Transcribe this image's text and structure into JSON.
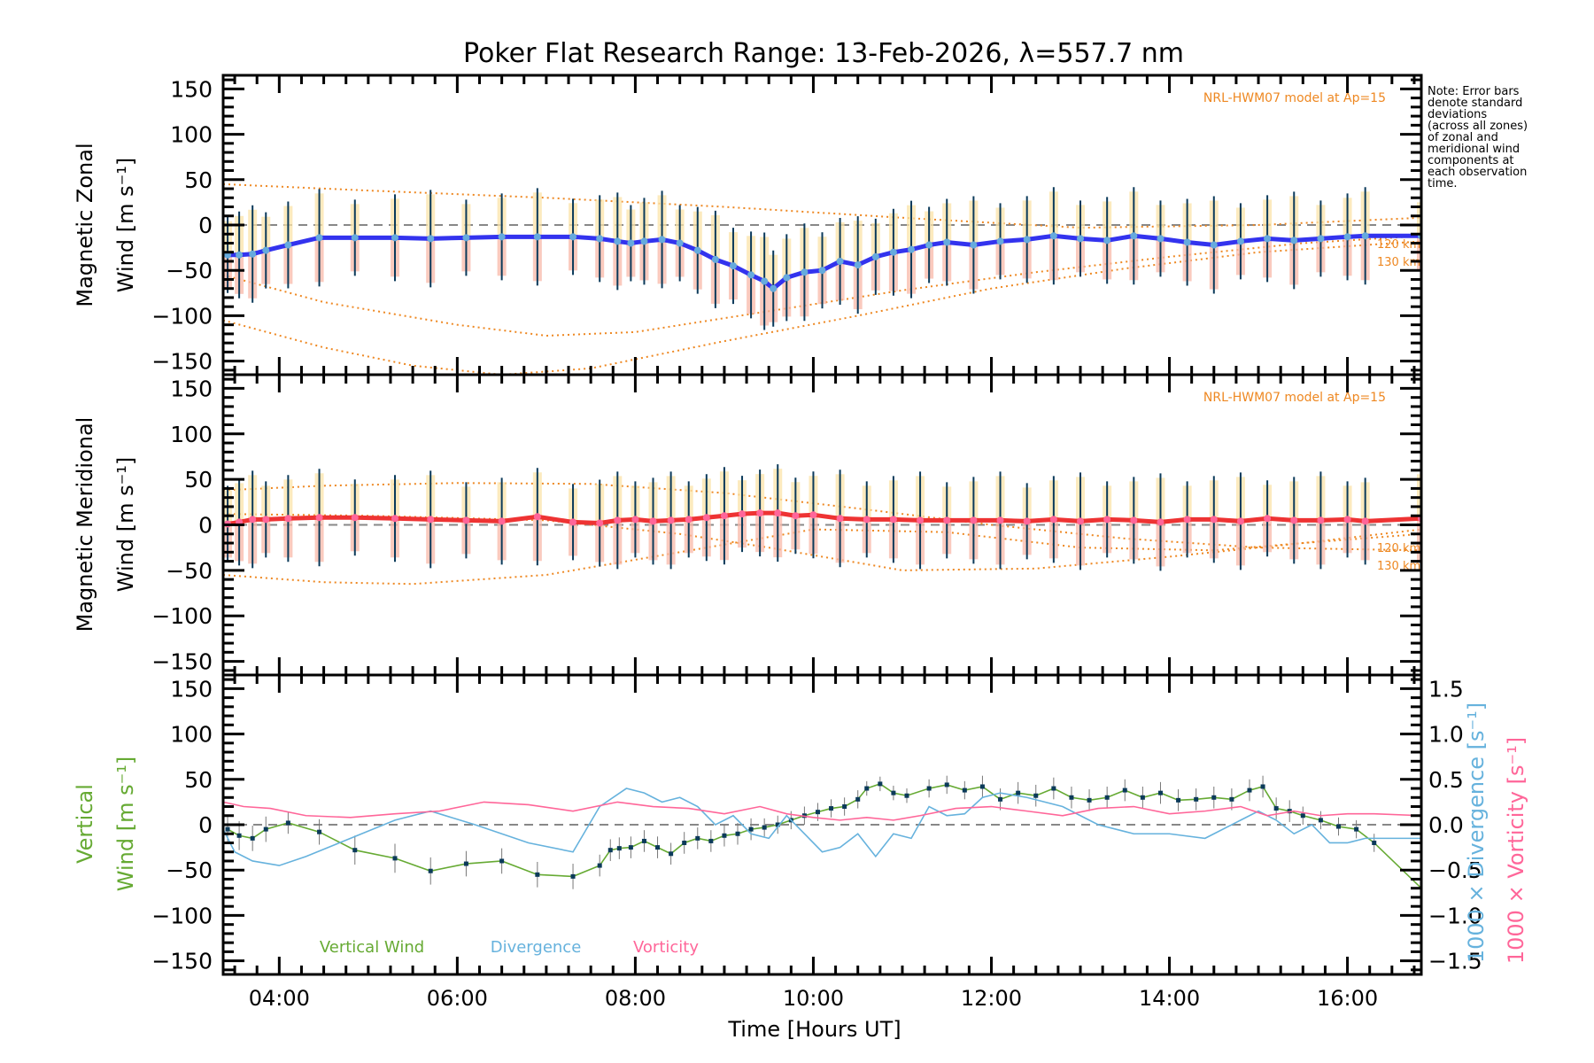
{
  "chart_data": {
    "type": "line",
    "title": "Poker Flat Research Range: 13-Feb-2026, λ=557.7 nm",
    "xlabel": "Time [Hours UT]",
    "xlim_hours": [
      3.37,
      16.83
    ],
    "xticks": [
      {
        "hour": 4,
        "label": "04:00"
      },
      {
        "hour": 6,
        "label": "06:00"
      },
      {
        "hour": 8,
        "label": "08:00"
      },
      {
        "hour": 10,
        "label": "10:00"
      },
      {
        "hour": 12,
        "label": "12:00"
      },
      {
        "hour": 14,
        "label": "14:00"
      },
      {
        "hour": 16,
        "label": "16:00"
      }
    ],
    "note": "Note: Error bars\ndenote standard\ndeviations\n(across all zones)\nof zonal and\nmeridional wind\ncomponents at\neach observation\ntime.",
    "panels": [
      {
        "id": "zonal",
        "ylabel_line1": "Magnetic Zonal",
        "ylabel_line2": "Wind [m s⁻¹]",
        "ylim": [
          -165,
          165
        ],
        "yticks": [
          150,
          100,
          50,
          0,
          -50,
          -100,
          -150
        ],
        "model_label": "NRL-HWM07 model at Ap=15",
        "model_alt_labels": [
          "120 km",
          "130 km"
        ],
        "series": [
          {
            "name": "Zonal wind",
            "color": "#3333ee",
            "marker_color": "#66aadd",
            "x": [
              3.42,
              3.55,
              3.7,
              3.85,
              4.1,
              4.45,
              4.85,
              5.3,
              5.7,
              6.1,
              6.5,
              6.9,
              7.3,
              7.6,
              7.8,
              7.95,
              8.1,
              8.3,
              8.5,
              8.7,
              8.9,
              9.1,
              9.3,
              9.45,
              9.55,
              9.7,
              9.9,
              10.1,
              10.3,
              10.5,
              10.7,
              10.9,
              11.1,
              11.3,
              11.5,
              11.8,
              12.1,
              12.4,
              12.7,
              13.0,
              13.3,
              13.6,
              13.9,
              14.2,
              14.5,
              14.8,
              15.1,
              15.4,
              15.7,
              16.0,
              16.2,
              16.83
            ],
            "y": [
              -33,
              -33,
              -32,
              -28,
              -22,
              -14,
              -14,
              -14,
              -15,
              -14,
              -13,
              -13,
              -13,
              -15,
              -18,
              -20,
              -18,
              -16,
              -20,
              -28,
              -38,
              -45,
              -55,
              -62,
              -70,
              -58,
              -52,
              -50,
              -40,
              -44,
              -35,
              -30,
              -27,
              -22,
              -19,
              -22,
              -18,
              -16,
              -12,
              -15,
              -17,
              -12,
              -15,
              -19,
              -22,
              -18,
              -15,
              -17,
              -15,
              -13,
              -12,
              -12
            ]
          }
        ],
        "model_curves": [
          {
            "name": "model-upper",
            "x": [
              3.37,
              5,
              7,
              9,
              11,
              13,
              15,
              16.83
            ],
            "y": [
              45,
              38,
              30,
              20,
              8,
              -3,
              0,
              8
            ]
          },
          {
            "name": "model-120km",
            "x": [
              3.37,
              4.5,
              6,
              7,
              8,
              9.5,
              11,
              12.5,
              14,
              15.5,
              16.83
            ],
            "y": [
              -55,
              -85,
              -110,
              -122,
              -118,
              -95,
              -72,
              -52,
              -35,
              -20,
              -12
            ]
          },
          {
            "name": "model-130km",
            "x": [
              3.37,
              4.5,
              5.5,
              6.5,
              7.5,
              9,
              10.5,
              12,
              13.5,
              15,
              16.83
            ],
            "y": [
              -105,
              -135,
              -155,
              -165,
              -158,
              -128,
              -100,
              -70,
              -48,
              -30,
              -18
            ]
          }
        ]
      },
      {
        "id": "meridional",
        "ylabel_line1": "Magnetic Meridional",
        "ylabel_line2": "Wind [m s⁻¹]",
        "ylim": [
          -165,
          165
        ],
        "yticks": [
          150,
          100,
          50,
          0,
          -50,
          -100,
          -150
        ],
        "model_label": "NRL-HWM07 model at Ap=15",
        "model_alt_labels": [
          "120 km",
          "130 km"
        ],
        "series": [
          {
            "name": "Meridional wind",
            "color": "#ee3333",
            "marker_color": "#ff6699",
            "x": [
              3.42,
              3.55,
              3.7,
              3.85,
              4.1,
              4.45,
              4.85,
              5.3,
              5.7,
              6.1,
              6.5,
              6.9,
              7.3,
              7.6,
              7.8,
              8.0,
              8.2,
              8.4,
              8.6,
              8.8,
              9.0,
              9.2,
              9.4,
              9.6,
              9.8,
              10.0,
              10.3,
              10.6,
              10.9,
              11.2,
              11.5,
              11.8,
              12.1,
              12.4,
              12.7,
              13.0,
              13.3,
              13.6,
              13.9,
              14.2,
              14.5,
              14.8,
              15.1,
              15.4,
              15.7,
              16.0,
              16.2,
              16.83
            ],
            "y": [
              1,
              3,
              6,
              6,
              7,
              8,
              8,
              7,
              6,
              5,
              4,
              9,
              3,
              2,
              5,
              6,
              4,
              5,
              6,
              8,
              10,
              12,
              13,
              13,
              10,
              11,
              7,
              6,
              6,
              5,
              5,
              5,
              5,
              4,
              6,
              4,
              6,
              5,
              3,
              6,
              6,
              4,
              7,
              5,
              5,
              6,
              4,
              7
            ]
          }
        ],
        "model_curves": [
          {
            "name": "model-upper",
            "x": [
              3.37,
              4.5,
              6,
              7.5,
              9,
              10.5,
              12,
              13.5,
              15,
              16.83
            ],
            "y": [
              38,
              43,
              46,
              45,
              35,
              18,
              0,
              -15,
              -25,
              -28
            ]
          },
          {
            "name": "model-120km",
            "x": [
              3.37,
              4.5,
              5.5,
              7,
              8.5,
              10,
              11.5,
              13,
              14.5,
              15.5,
              16.83
            ],
            "y": [
              -55,
              -63,
              -65,
              -55,
              -30,
              -5,
              -8,
              -25,
              -28,
              -20,
              -5
            ]
          },
          {
            "name": "model-130km",
            "x": [
              3.37,
              5,
              7,
              8.5,
              9.5,
              11,
              12.5,
              14,
              15.5,
              16.83
            ],
            "y": [
              12,
              10,
              5,
              -10,
              -25,
              -50,
              -48,
              -35,
              -20,
              -10
            ]
          }
        ]
      },
      {
        "id": "vertical",
        "ylabel_line1": "Vertical",
        "ylabel_line2": "Wind [m s⁻¹]",
        "ylim": [
          -165,
          165
        ],
        "yticks": [
          150,
          100,
          50,
          0,
          -50,
          -100,
          -150
        ],
        "right_axis": {
          "label_divergence": "1000 × Divergence [s⁻¹]",
          "label_vorticity": "1000 × Vorticity [s⁻¹]",
          "ylim": [
            -1.65,
            1.65
          ],
          "yticks": [
            1.5,
            1.0,
            0.5,
            0.0,
            -0.5,
            -1.0,
            -1.5
          ],
          "ytick_labels": [
            "1.5",
            "1.0",
            "0.5",
            "0.0",
            "−0.5",
            "−1.0",
            "−1.5"
          ]
        },
        "legend": [
          {
            "label": "Vertical Wind",
            "color": "#66aa33"
          },
          {
            "label": "Divergence",
            "color": "#66b2dd"
          },
          {
            "label": "Vorticity",
            "color": "#ff6699"
          }
        ],
        "series": [
          {
            "name": "Vertical Wind",
            "axis": "left",
            "color": "#66aa33",
            "x": [
              3.42,
              3.55,
              3.7,
              3.85,
              4.1,
              4.45,
              4.85,
              5.3,
              5.7,
              6.1,
              6.5,
              6.9,
              7.3,
              7.6,
              7.72,
              7.82,
              7.95,
              8.1,
              8.25,
              8.4,
              8.55,
              8.7,
              8.85,
              9.0,
              9.15,
              9.3,
              9.45,
              9.6,
              9.75,
              9.9,
              10.05,
              10.2,
              10.35,
              10.5,
              10.6,
              10.75,
              10.9,
              11.05,
              11.3,
              11.5,
              11.7,
              11.9,
              12.1,
              12.3,
              12.5,
              12.7,
              12.9,
              13.1,
              13.3,
              13.5,
              13.7,
              13.9,
              14.1,
              14.3,
              14.5,
              14.7,
              14.9,
              15.05,
              15.2,
              15.35,
              15.5,
              15.7,
              15.9,
              16.1,
              16.3,
              16.83
            ],
            "y": [
              -5,
              -12,
              -15,
              -5,
              2,
              -8,
              -28,
              -37,
              -51,
              -43,
              -40,
              -55,
              -57,
              -45,
              -28,
              -26,
              -25,
              -18,
              -25,
              -32,
              -20,
              -15,
              -18,
              -12,
              -10,
              -5,
              -3,
              0,
              5,
              10,
              14,
              18,
              20,
              28,
              40,
              45,
              35,
              32,
              40,
              44,
              38,
              42,
              28,
              35,
              32,
              40,
              30,
              27,
              30,
              38,
              30,
              35,
              27,
              28,
              30,
              28,
              38,
              42,
              18,
              15,
              10,
              5,
              -2,
              -5,
              -20,
              -70
            ],
            "err": [
              16,
              16,
              14,
              14,
              12,
              14,
              16,
              16,
              15,
              14,
              14,
              14,
              14,
              12,
              12,
              12,
              12,
              12,
              12,
              12,
              12,
              12,
              12,
              12,
              12,
              12,
              10,
              10,
              10,
              10,
              10,
              10,
              10,
              10,
              8,
              8,
              8,
              8,
              10,
              10,
              10,
              12,
              12,
              12,
              12,
              12,
              12,
              12,
              12,
              12,
              12,
              12,
              12,
              12,
              12,
              12,
              12,
              12,
              12,
              12,
              10,
              10,
              10,
              10,
              10,
              0
            ]
          },
          {
            "name": "Divergence",
            "axis": "right",
            "color": "#66b2dd",
            "x": [
              3.37,
              3.5,
              3.7,
              4.0,
              4.3,
              4.8,
              5.3,
              5.7,
              6.2,
              6.8,
              7.3,
              7.6,
              7.9,
              8.1,
              8.3,
              8.5,
              8.7,
              8.9,
              9.1,
              9.3,
              9.5,
              9.7,
              9.9,
              10.1,
              10.3,
              10.5,
              10.7,
              10.9,
              11.1,
              11.3,
              11.5,
              11.7,
              11.9,
              12.1,
              12.4,
              12.8,
              13.2,
              13.6,
              14.0,
              14.4,
              14.8,
              15.0,
              15.2,
              15.4,
              15.6,
              15.8,
              16.0,
              16.2,
              16.4,
              16.83
            ],
            "y": [
              -0.05,
              -0.3,
              -0.4,
              -0.45,
              -0.35,
              -0.15,
              0.05,
              0.15,
              0.0,
              -0.2,
              -0.3,
              0.2,
              0.4,
              0.35,
              0.25,
              0.3,
              0.2,
              0.0,
              0.1,
              -0.1,
              -0.15,
              0.1,
              -0.1,
              -0.3,
              -0.25,
              -0.1,
              -0.35,
              -0.1,
              -0.15,
              0.2,
              0.1,
              0.12,
              0.3,
              0.35,
              0.3,
              0.2,
              0.0,
              -0.1,
              -0.1,
              -0.15,
              0.05,
              0.15,
              0.05,
              -0.1,
              0.0,
              -0.2,
              -0.2,
              -0.15,
              -0.15,
              -0.15
            ]
          },
          {
            "name": "Vorticity",
            "axis": "right",
            "color": "#ff6699",
            "x": [
              3.37,
              3.6,
              3.9,
              4.3,
              4.8,
              5.3,
              5.8,
              6.3,
              6.8,
              7.3,
              7.8,
              8.2,
              8.6,
              9.0,
              9.4,
              9.7,
              10.0,
              10.3,
              10.6,
              10.9,
              11.2,
              11.6,
              12.0,
              12.4,
              12.8,
              13.2,
              13.6,
              14.0,
              14.4,
              14.8,
              15.1,
              15.4,
              15.7,
              16.0,
              16.3,
              16.83
            ],
            "y": [
              0.25,
              0.2,
              0.18,
              0.1,
              0.08,
              0.12,
              0.15,
              0.25,
              0.22,
              0.15,
              0.25,
              0.2,
              0.18,
              0.12,
              0.2,
              0.12,
              0.08,
              0.05,
              0.08,
              0.05,
              0.1,
              0.18,
              0.2,
              0.15,
              0.1,
              0.18,
              0.2,
              0.12,
              0.15,
              0.2,
              0.1,
              0.15,
              0.1,
              0.12,
              0.12,
              0.1
            ]
          }
        ]
      }
    ]
  }
}
